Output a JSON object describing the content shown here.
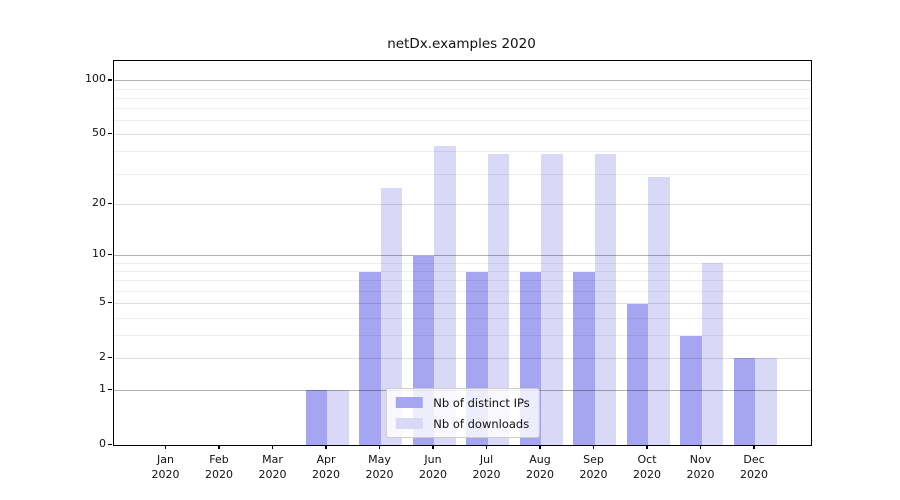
{
  "chart_data": {
    "type": "bar",
    "title": "netDx.examples 2020",
    "categories": [
      "Jan 2020",
      "Feb 2020",
      "Mar 2020",
      "Apr 2020",
      "May 2020",
      "Jun 2020",
      "Jul 2020",
      "Aug 2020",
      "Sep 2020",
      "Oct 2020",
      "Nov 2020",
      "Dec 2020"
    ],
    "x_tick_month": [
      "Jan",
      "Feb",
      "Mar",
      "Apr",
      "May",
      "Jun",
      "Jul",
      "Aug",
      "Sep",
      "Oct",
      "Nov",
      "Dec"
    ],
    "x_tick_year": "2020",
    "series": [
      {
        "name": "Nb of distinct IPs",
        "key": "distinct-ips",
        "color": "#a5a5f1",
        "values": [
          0,
          0,
          0,
          1,
          8,
          10,
          8,
          8,
          8,
          5,
          3,
          2
        ]
      },
      {
        "name": "Nb of downloads",
        "key": "downloads",
        "color": "#d9d9f7",
        "values": [
          0,
          0,
          0,
          1,
          25,
          43,
          39,
          39,
          39,
          29,
          9,
          2
        ]
      }
    ],
    "y_axis": {
      "scale": "log1p",
      "tick_labels": [
        100,
        50,
        20,
        10,
        5,
        2,
        1,
        0
      ],
      "major_gridlines": [
        1,
        10,
        100
      ],
      "labeled_gridlines": [
        2,
        5,
        20,
        50
      ],
      "minor_gridlines": [
        3,
        4,
        6,
        7,
        8,
        9,
        30,
        40,
        60,
        70,
        80,
        90
      ],
      "ylim": [
        0,
        128
      ],
      "grid": "on"
    },
    "legend_position": "lower center"
  }
}
